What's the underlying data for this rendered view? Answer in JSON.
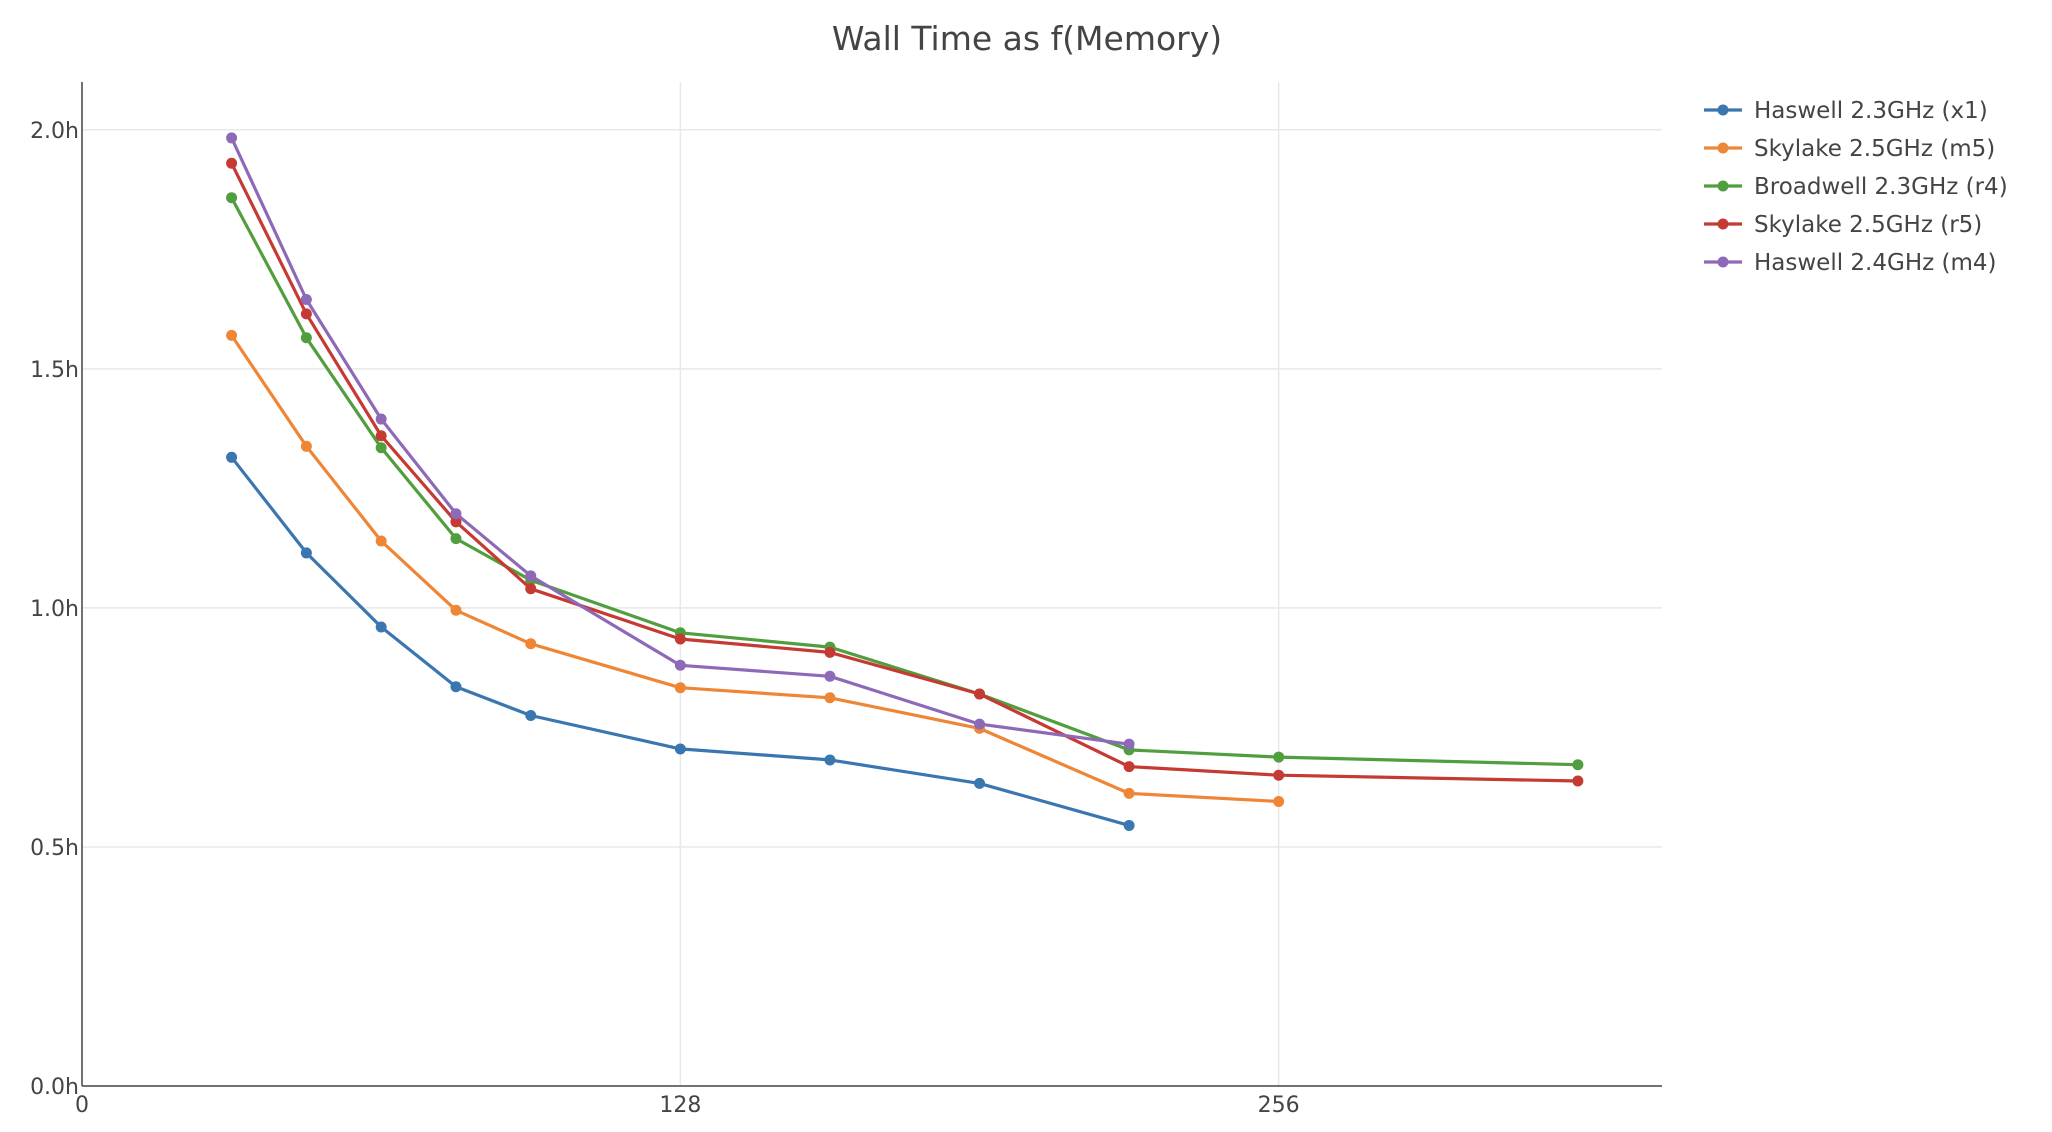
{
  "chart_data": {
    "type": "line",
    "title": "Wall Time as f(Memory)",
    "xlabel": "",
    "ylabel": "",
    "xlim": [
      0,
      338
    ],
    "ylim": [
      0,
      2.1
    ],
    "x_ticks": [
      {
        "value": 0,
        "label": "0"
      },
      {
        "value": 128,
        "label": "128"
      },
      {
        "value": 256,
        "label": "256"
      }
    ],
    "y_ticks": [
      {
        "value": 0,
        "label": "0.0h"
      },
      {
        "value": 0.5,
        "label": "0.5h"
      },
      {
        "value": 1.0,
        "label": "1.0h"
      },
      {
        "value": 1.5,
        "label": "1.5h"
      },
      {
        "value": 2.0,
        "label": "2.0h"
      }
    ],
    "grid": true,
    "legend_position": "top-right",
    "series": [
      {
        "name": "Haswell 2.3GHz (x1)",
        "color": "#3a76af",
        "x": [
          32,
          48,
          64,
          80,
          96,
          128,
          160,
          192,
          224
        ],
        "y": [
          1.315,
          1.115,
          0.96,
          0.835,
          0.775,
          0.705,
          0.682,
          0.633,
          0.545
        ]
      },
      {
        "name": "Skylake 2.5GHz (m5)",
        "color": "#ef8636",
        "x": [
          32,
          48,
          64,
          80,
          96,
          128,
          160,
          192,
          224,
          256
        ],
        "y": [
          1.57,
          1.338,
          1.14,
          0.995,
          0.925,
          0.833,
          0.812,
          0.748,
          0.612,
          0.595
        ]
      },
      {
        "name": "Broadwell 2.3GHz (r4)",
        "color": "#519e3e",
        "x": [
          32,
          48,
          64,
          80,
          96,
          128,
          160,
          192,
          224,
          256,
          320
        ],
        "y": [
          1.858,
          1.565,
          1.335,
          1.145,
          1.058,
          0.948,
          0.918,
          0.82,
          0.703,
          0.688,
          0.672
        ]
      },
      {
        "name": "Skylake 2.5GHz (r5)",
        "color": "#c53a32",
        "x": [
          32,
          48,
          64,
          80,
          96,
          128,
          160,
          192,
          224,
          256,
          320
        ],
        "y": [
          1.93,
          1.615,
          1.36,
          1.18,
          1.04,
          0.935,
          0.907,
          0.82,
          0.668,
          0.65,
          0.638
        ]
      },
      {
        "name": "Haswell 2.4GHz (m4)",
        "color": "#8d69b8",
        "x": [
          32,
          48,
          64,
          80,
          96,
          128,
          160,
          192,
          224
        ],
        "y": [
          1.983,
          1.645,
          1.395,
          1.197,
          1.067,
          0.88,
          0.857,
          0.757,
          0.715
        ]
      }
    ]
  }
}
